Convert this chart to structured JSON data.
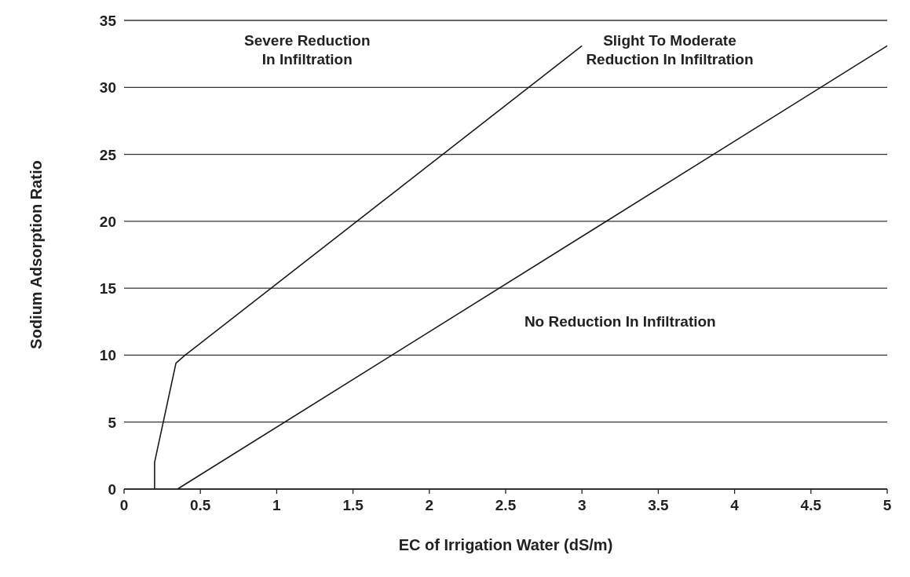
{
  "chart_data": {
    "type": "line",
    "xlabel": "EC of Irrigation Water (dS/m)",
    "ylabel": "Sodium Adsorption Ratio",
    "xlim": [
      0,
      5
    ],
    "xticks": [
      0,
      0.5,
      1,
      1.5,
      2,
      2.5,
      3,
      3.5,
      4,
      4.5,
      5
    ],
    "ylim": [
      0,
      35
    ],
    "yticks": [
      0,
      5,
      10,
      15,
      20,
      25,
      30,
      35
    ],
    "grid": "y",
    "line_style": "solid",
    "series": [
      {
        "color": "#1a1a1a",
        "x": [
          0.2,
          0.2,
          0.34,
          0.4,
          3.0
        ],
        "values": [
          0,
          2,
          9.4,
          10,
          33.1
        ]
      },
      {
        "color": "#1a1a1a",
        "x": [
          0.35,
          5
        ],
        "values": [
          0,
          33.1
        ]
      }
    ],
    "annotations": [
      "Severe Reduction\nIn Infiltration",
      "Slight To Moderate\nReduction In Infiltration",
      "No Reduction In Infiltration"
    ]
  }
}
